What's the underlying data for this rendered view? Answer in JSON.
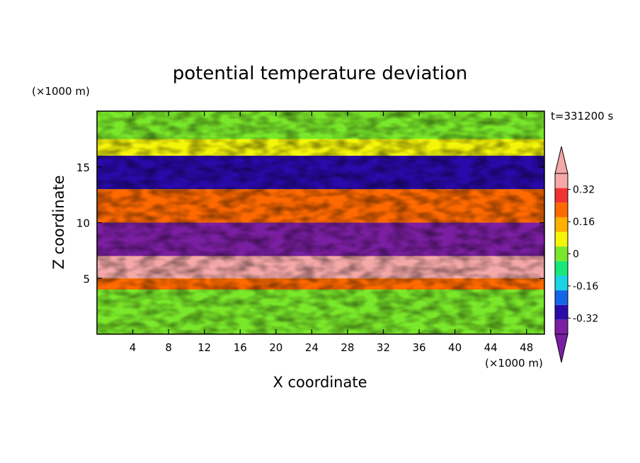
{
  "chart_data": {
    "type": "heatmap",
    "title": "potential temperature deviation",
    "xlabel": "X coordinate",
    "ylabel": "Z coordinate",
    "x_unit": "(×1000 m)",
    "y_unit": "(×1000 m)",
    "time_label": "t=331200 s",
    "xlim": [
      0,
      50
    ],
    "ylim": [
      0,
      20
    ],
    "x_ticks": [
      4,
      8,
      12,
      16,
      20,
      24,
      28,
      32,
      36,
      40,
      44,
      48
    ],
    "y_ticks": [
      5,
      10,
      15
    ],
    "colorbar": {
      "levels": [
        -0.4,
        -0.32,
        -0.24,
        -0.16,
        -0.08,
        0,
        0.08,
        0.16,
        0.24,
        0.32,
        0.4
      ],
      "labels": [
        "-0.32",
        "-0.16",
        "0",
        "0.16",
        "0.32"
      ],
      "label_values": [
        -0.32,
        -0.16,
        0,
        0.16,
        0.32
      ],
      "colors": [
        "#7b1fa2",
        "#2a0aa8",
        "#1566e6",
        "#1ad4e6",
        "#16e87a",
        "#7ae82a",
        "#f5f50a",
        "#ffb000",
        "#ff6a00",
        "#f03232",
        "#f5a8a8"
      ],
      "under_color": "#7b1fa2",
      "over_color": "#f5a8a8"
    },
    "bands": [
      {
        "z": [
          17.5,
          20
        ],
        "value": 0.02
      },
      {
        "z": [
          16,
          17.5
        ],
        "value": 0.12
      },
      {
        "z": [
          13,
          16
        ],
        "value": -0.3
      },
      {
        "z": [
          10,
          13
        ],
        "value": 0.25
      },
      {
        "z": [
          7,
          10
        ],
        "value": -0.42
      },
      {
        "z": [
          5,
          7
        ],
        "value": 0.45
      },
      {
        "z": [
          4,
          5
        ],
        "value": 0.3
      },
      {
        "z": [
          0,
          4
        ],
        "value": 0.05
      }
    ]
  }
}
